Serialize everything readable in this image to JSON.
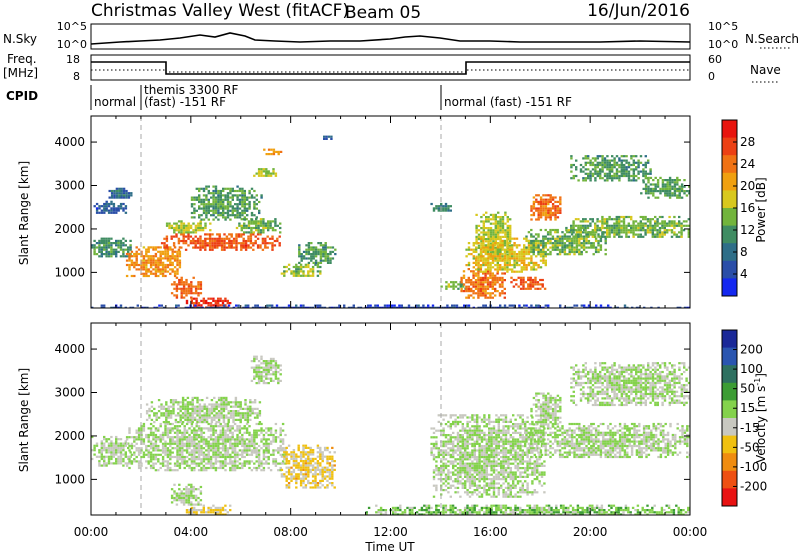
{
  "header": {
    "title": "Christmas Valley West (fitACF)",
    "beam": "Beam 05",
    "date": "16/Jun/2016"
  },
  "top_panels": {
    "nsky_label": "N.Sky",
    "nsky_ticks_left": [
      "10^5",
      "10^0"
    ],
    "nsky_ticks_right": [
      "10^5",
      "10^0"
    ],
    "nsearch_label": "N.Search",
    "freq_label_1": "Freq.",
    "freq_label_2": "[MHz]",
    "freq_ticks_left": [
      "18",
      "8"
    ],
    "nave_ticks_right": [
      "60",
      "0"
    ],
    "nave_label": "Nave",
    "cpid_label": "CPID",
    "cpid_segments": [
      "normal",
      "themis 3300 RF",
      "(fast) -151 RF",
      "normal (fast) -151 RF"
    ]
  },
  "axes": {
    "xlabel": "Time UT",
    "ylabel": "Slant Range [km]",
    "x_ticks": [
      "00:00",
      "04:00",
      "08:00",
      "12:00",
      "16:00",
      "20:00",
      "00:00"
    ],
    "y_ticks": [
      "1000",
      "2000",
      "3000",
      "4000"
    ]
  },
  "colorbars": {
    "power": {
      "label": "Power [dB]",
      "ticks": [
        "4",
        "8",
        "12",
        "16",
        "20",
        "24",
        "28"
      ],
      "colors": [
        "#1428f0",
        "#2a4ea8",
        "#2e6e88",
        "#3f8c62",
        "#72b43c",
        "#d8c81e",
        "#f0a010",
        "#f07214",
        "#ec4014",
        "#e8140e"
      ]
    },
    "velocity": {
      "label_main": "Velocity [m s",
      "label_sup": "-1",
      "label_end": "]",
      "ticks": [
        "200",
        "100",
        "50",
        "15",
        "-15",
        "-50",
        "-100",
        "-200"
      ],
      "colors": [
        "#1a2898",
        "#2a55b0",
        "#2e7060",
        "#3c9c34",
        "#84d24c",
        "#c8c8c0",
        "#f0c010",
        "#ef8c10",
        "#ee5012",
        "#e81212"
      ]
    }
  },
  "chart_data": [
    {
      "type": "heatmap",
      "title": "Power",
      "xlabel": "Time UT",
      "ylabel": "Slant Range [km]",
      "x_range_hours": [
        0,
        24
      ],
      "y_range_km": [
        180,
        4600
      ],
      "color_label": "Power [dB]",
      "color_range": [
        0,
        32
      ],
      "grid": false,
      "regions": [
        {
          "t0": 0.0,
          "t1": 1.6,
          "r0": 1350,
          "r1": 1800,
          "value": 11
        },
        {
          "t0": 0.1,
          "t1": 1.4,
          "r0": 2350,
          "r1": 2650,
          "value": 6
        },
        {
          "t0": 0.7,
          "t1": 1.6,
          "r0": 2700,
          "r1": 2950,
          "value": 7
        },
        {
          "t0": 1.4,
          "t1": 3.6,
          "r0": 900,
          "r1": 1600,
          "value": 22
        },
        {
          "t0": 2.8,
          "t1": 7.6,
          "r0": 1500,
          "r1": 1900,
          "value": 26
        },
        {
          "t0": 3.0,
          "t1": 4.8,
          "r0": 1900,
          "r1": 2200,
          "value": 16
        },
        {
          "t0": 5.8,
          "t1": 7.6,
          "r0": 1900,
          "r1": 2250,
          "value": 14
        },
        {
          "t0": 3.2,
          "t1": 4.4,
          "r0": 400,
          "r1": 900,
          "value": 25
        },
        {
          "t0": 3.8,
          "t1": 5.6,
          "r0": 200,
          "r1": 420,
          "value": 28
        },
        {
          "t0": 4.0,
          "t1": 6.8,
          "r0": 2200,
          "r1": 3000,
          "value": 12
        },
        {
          "t0": 6.4,
          "t1": 7.4,
          "r0": 3200,
          "r1": 3400,
          "value": 16
        },
        {
          "t0": 6.8,
          "t1": 7.6,
          "r0": 3700,
          "r1": 3850,
          "value": 22
        },
        {
          "t0": 7.6,
          "t1": 9.2,
          "r0": 900,
          "r1": 1200,
          "value": 15
        },
        {
          "t0": 8.2,
          "t1": 9.8,
          "r0": 1200,
          "r1": 1700,
          "value": 12
        },
        {
          "t0": 9.2,
          "t1": 9.6,
          "r0": 4050,
          "r1": 4200,
          "value": 6
        },
        {
          "t0": 13.6,
          "t1": 14.4,
          "r0": 2400,
          "r1": 2600,
          "value": 10
        },
        {
          "t0": 14.0,
          "t1": 15.0,
          "r0": 600,
          "r1": 800,
          "value": 14
        },
        {
          "t0": 14.8,
          "t1": 16.6,
          "r0": 400,
          "r1": 1100,
          "value": 24
        },
        {
          "t0": 15.4,
          "t1": 16.8,
          "r0": 1300,
          "r1": 2400,
          "value": 16
        },
        {
          "t0": 15.0,
          "t1": 18.2,
          "r0": 1000,
          "r1": 1800,
          "value": 18
        },
        {
          "t0": 16.8,
          "t1": 18.2,
          "r0": 600,
          "r1": 900,
          "value": 26
        },
        {
          "t0": 17.6,
          "t1": 18.8,
          "r0": 2200,
          "r1": 2800,
          "value": 24
        },
        {
          "t0": 17.4,
          "t1": 20.6,
          "r0": 1400,
          "r1": 2000,
          "value": 14
        },
        {
          "t0": 19.0,
          "t1": 24.0,
          "r0": 1800,
          "r1": 2300,
          "value": 14
        },
        {
          "t0": 19.2,
          "t1": 22.4,
          "r0": 3100,
          "r1": 3700,
          "value": 12
        },
        {
          "t0": 22.0,
          "t1": 24.0,
          "r0": 2700,
          "r1": 3200,
          "value": 13
        },
        {
          "t0": 0.0,
          "t1": 24.0,
          "r0": 180,
          "r1": 260,
          "value": 4
        }
      ]
    },
    {
      "type": "heatmap",
      "title": "Velocity",
      "xlabel": "Time UT",
      "ylabel": "Slant Range [km]",
      "x_range_hours": [
        0,
        24
      ],
      "y_range_km": [
        180,
        4600
      ],
      "color_label": "Velocity [m s-1]",
      "color_range": [
        -250,
        250
      ],
      "grid": false,
      "regions": [
        {
          "t0": 0.0,
          "t1": 1.6,
          "r0": 1300,
          "r1": 2000,
          "value": 0
        },
        {
          "t0": 1.4,
          "t1": 7.8,
          "r0": 1200,
          "r1": 2300,
          "value": 0
        },
        {
          "t0": 2.2,
          "t1": 6.8,
          "r0": 2300,
          "r1": 2900,
          "value": 0
        },
        {
          "t0": 3.2,
          "t1": 4.4,
          "r0": 400,
          "r1": 900,
          "value": 0
        },
        {
          "t0": 6.4,
          "t1": 7.6,
          "r0": 3200,
          "r1": 3850,
          "value": 0
        },
        {
          "t0": 7.6,
          "t1": 9.8,
          "r0": 800,
          "r1": 1800,
          "value": -60
        },
        {
          "t0": 3.8,
          "t1": 5.6,
          "r0": 200,
          "r1": 420,
          "value": -50
        },
        {
          "t0": 13.6,
          "t1": 18.2,
          "r0": 600,
          "r1": 2500,
          "value": 0
        },
        {
          "t0": 17.4,
          "t1": 24.0,
          "r0": 1500,
          "r1": 2300,
          "value": 0
        },
        {
          "t0": 17.6,
          "t1": 18.8,
          "r0": 2200,
          "r1": 3000,
          "value": 0
        },
        {
          "t0": 19.2,
          "t1": 24.0,
          "r0": 2700,
          "r1": 3700,
          "value": 0
        },
        {
          "t0": 11.0,
          "t1": 24.0,
          "r0": 180,
          "r1": 420,
          "value": 30
        }
      ]
    }
  ]
}
